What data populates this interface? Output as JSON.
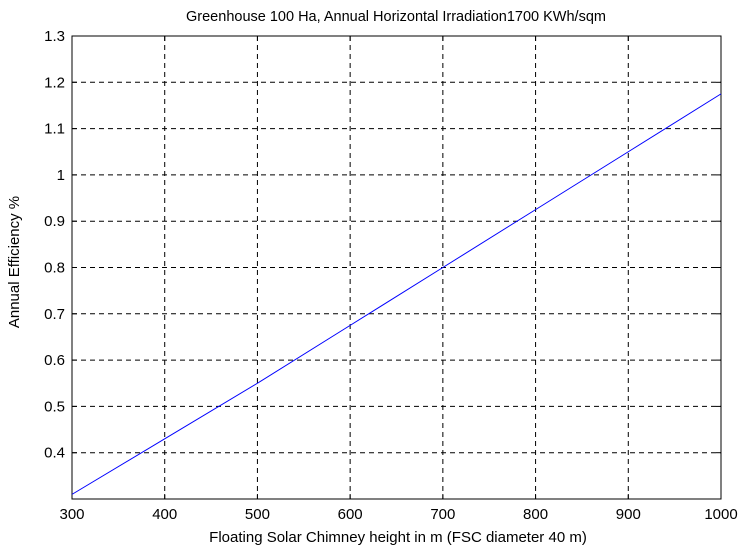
{
  "chart_data": {
    "type": "line",
    "title": "Greenhouse 100 Ha, Annual Horizontal Irradiation1700 KWh/sqm",
    "xlabel": "Floating Solar Chimney height in m (FSC diameter 40 m)",
    "ylabel": "Annual Efficiency %",
    "xlim": [
      300,
      1000
    ],
    "ylim": [
      0.3,
      1.3
    ],
    "xticks": [
      300,
      400,
      500,
      600,
      700,
      800,
      900,
      1000
    ],
    "xtick_labels": [
      "300",
      "400",
      "500",
      "600",
      "700",
      "800",
      "900",
      "1000"
    ],
    "yticks": [
      0.4,
      0.5,
      0.6,
      0.7,
      0.8,
      0.9,
      1.0,
      1.1,
      1.2,
      1.3
    ],
    "ytick_labels": [
      "0.4",
      "0.5",
      "0.6",
      "0.7",
      "0.8",
      "0.9",
      "1",
      "1.1",
      "1.2",
      "1.3"
    ],
    "grid": true,
    "series": [
      {
        "color": "#0000ff",
        "x": [
          300,
          400,
          500,
          600,
          700,
          800,
          900,
          1000
        ],
        "y": [
          0.31,
          0.43,
          0.55,
          0.675,
          0.8,
          0.925,
          1.05,
          1.175
        ]
      }
    ]
  }
}
